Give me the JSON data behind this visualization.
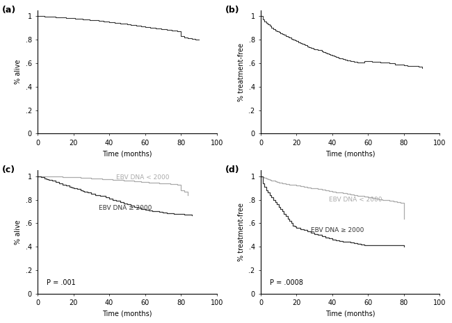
{
  "fig_width": 6.5,
  "fig_height": 4.65,
  "dpi": 100,
  "panel_labels": [
    "(a)",
    "(b)",
    "(c)",
    "(d)"
  ],
  "ylabels": [
    "% alive",
    "% treatment-free",
    "% alive",
    "% treatment-free"
  ],
  "xlabel": "Time (months)",
  "xlim": [
    0,
    100
  ],
  "ylim": [
    0,
    1.05
  ],
  "yticks": [
    0,
    0.2,
    0.4,
    0.6,
    0.8,
    1.0
  ],
  "ytick_labels": [
    "0",
    ".2",
    ".4",
    ".6",
    ".8",
    "1"
  ],
  "xticks": [
    0,
    20,
    40,
    60,
    80,
    100
  ],
  "color_low": "#aaaaaa",
  "color_high": "#333333",
  "color_single": "#333333",
  "p_value_c": "P = .001",
  "p_value_d": "P = .0008",
  "label_low": "EBV DNA < 2000",
  "label_high": "EBV DNA ≥ 2000",
  "os_all_times": [
    0,
    2,
    3,
    4,
    5,
    6,
    7,
    8,
    9,
    10,
    11,
    12,
    13,
    14,
    15,
    16,
    17,
    18,
    19,
    20,
    21,
    22,
    23,
    24,
    25,
    26,
    27,
    28,
    29,
    30,
    32,
    34,
    35,
    36,
    37,
    38,
    39,
    40,
    41,
    42,
    43,
    44,
    45,
    46,
    47,
    48,
    50,
    51,
    52,
    53,
    54,
    55,
    56,
    57,
    58,
    59,
    60,
    61,
    62,
    63,
    64,
    65,
    66,
    67,
    68,
    69,
    70,
    71,
    72,
    73,
    74,
    75,
    76,
    77,
    78,
    80,
    82,
    84,
    86,
    88,
    90
  ],
  "os_all_surv": [
    1.0,
    1.0,
    1.0,
    0.998,
    0.997,
    0.996,
    0.995,
    0.994,
    0.993,
    0.992,
    0.991,
    0.99,
    0.989,
    0.988,
    0.987,
    0.986,
    0.985,
    0.984,
    0.983,
    0.982,
    0.98,
    0.979,
    0.978,
    0.977,
    0.975,
    0.974,
    0.972,
    0.97,
    0.969,
    0.967,
    0.964,
    0.962,
    0.96,
    0.958,
    0.956,
    0.954,
    0.952,
    0.95,
    0.948,
    0.946,
    0.944,
    0.942,
    0.94,
    0.938,
    0.936,
    0.934,
    0.93,
    0.928,
    0.926,
    0.924,
    0.922,
    0.92,
    0.918,
    0.916,
    0.914,
    0.912,
    0.91,
    0.908,
    0.906,
    0.904,
    0.902,
    0.9,
    0.898,
    0.896,
    0.894,
    0.892,
    0.89,
    0.888,
    0.886,
    0.884,
    0.882,
    0.88,
    0.878,
    0.876,
    0.874,
    0.83,
    0.82,
    0.81,
    0.805,
    0.802,
    0.8
  ],
  "ttft_all_times": [
    0,
    1,
    2,
    3,
    4,
    5,
    6,
    7,
    8,
    9,
    10,
    11,
    12,
    13,
    14,
    15,
    16,
    17,
    18,
    19,
    20,
    21,
    22,
    23,
    24,
    25,
    26,
    27,
    28,
    29,
    30,
    32,
    34,
    35,
    36,
    37,
    38,
    39,
    40,
    41,
    42,
    43,
    44,
    45,
    46,
    47,
    48,
    50,
    52,
    54,
    56,
    58,
    60,
    62,
    65,
    67,
    70,
    72,
    75,
    77,
    80,
    82,
    85,
    88,
    90
  ],
  "ttft_all_surv": [
    1.0,
    0.97,
    0.955,
    0.94,
    0.928,
    0.916,
    0.904,
    0.892,
    0.88,
    0.872,
    0.864,
    0.856,
    0.848,
    0.84,
    0.832,
    0.824,
    0.816,
    0.808,
    0.8,
    0.793,
    0.786,
    0.779,
    0.772,
    0.765,
    0.758,
    0.751,
    0.744,
    0.737,
    0.73,
    0.723,
    0.716,
    0.709,
    0.702,
    0.696,
    0.69,
    0.684,
    0.678,
    0.673,
    0.667,
    0.661,
    0.655,
    0.649,
    0.643,
    0.638,
    0.633,
    0.628,
    0.623,
    0.618,
    0.613,
    0.608,
    0.603,
    0.62,
    0.617,
    0.614,
    0.611,
    0.608,
    0.605,
    0.602,
    0.59,
    0.587,
    0.581,
    0.578,
    0.575,
    0.57,
    0.56
  ],
  "os_low_times": [
    0,
    2,
    4,
    6,
    8,
    10,
    12,
    14,
    16,
    18,
    20,
    22,
    24,
    26,
    28,
    30,
    32,
    34,
    36,
    38,
    40,
    42,
    44,
    46,
    48,
    50,
    52,
    54,
    56,
    58,
    60,
    62,
    64,
    66,
    68,
    70,
    72,
    74,
    76,
    78,
    80,
    82,
    84
  ],
  "os_low_surv": [
    1.0,
    1.0,
    1.0,
    1.0,
    0.998,
    0.997,
    0.996,
    0.995,
    0.994,
    0.993,
    0.991,
    0.99,
    0.988,
    0.987,
    0.985,
    0.983,
    0.981,
    0.979,
    0.977,
    0.975,
    0.973,
    0.971,
    0.969,
    0.967,
    0.964,
    0.962,
    0.96,
    0.957,
    0.955,
    0.953,
    0.95,
    0.948,
    0.946,
    0.944,
    0.942,
    0.94,
    0.938,
    0.935,
    0.933,
    0.93,
    0.88,
    0.87,
    0.84
  ],
  "os_high_times": [
    0,
    2,
    4,
    5,
    6,
    8,
    10,
    12,
    14,
    15,
    16,
    18,
    19,
    20,
    22,
    24,
    25,
    26,
    28,
    30,
    32,
    35,
    38,
    40,
    42,
    44,
    46,
    48,
    50,
    52,
    54,
    56,
    58,
    60,
    62,
    64,
    66,
    68,
    70,
    72,
    74,
    76,
    78,
    80,
    82,
    84,
    86
  ],
  "os_high_surv": [
    1.0,
    0.99,
    0.98,
    0.975,
    0.97,
    0.96,
    0.95,
    0.94,
    0.93,
    0.925,
    0.92,
    0.91,
    0.905,
    0.9,
    0.89,
    0.88,
    0.875,
    0.87,
    0.86,
    0.85,
    0.84,
    0.83,
    0.82,
    0.81,
    0.8,
    0.79,
    0.78,
    0.77,
    0.76,
    0.75,
    0.74,
    0.73,
    0.72,
    0.715,
    0.71,
    0.705,
    0.7,
    0.695,
    0.69,
    0.685,
    0.682,
    0.68,
    0.678,
    0.676,
    0.674,
    0.672,
    0.67
  ],
  "ttft_low_times": [
    0,
    1,
    2,
    3,
    4,
    5,
    6,
    7,
    8,
    9,
    10,
    12,
    14,
    16,
    18,
    20,
    22,
    24,
    26,
    28,
    30,
    32,
    34,
    36,
    38,
    40,
    42,
    44,
    46,
    48,
    50,
    52,
    54,
    56,
    58,
    60,
    62,
    64,
    66,
    68,
    70,
    72,
    74,
    76,
    78,
    80
  ],
  "ttft_low_surv": [
    1.0,
    0.99,
    0.985,
    0.98,
    0.975,
    0.97,
    0.965,
    0.96,
    0.955,
    0.95,
    0.945,
    0.94,
    0.935,
    0.93,
    0.925,
    0.92,
    0.915,
    0.91,
    0.905,
    0.9,
    0.895,
    0.89,
    0.885,
    0.88,
    0.875,
    0.87,
    0.865,
    0.86,
    0.855,
    0.85,
    0.845,
    0.84,
    0.835,
    0.83,
    0.825,
    0.82,
    0.815,
    0.81,
    0.805,
    0.8,
    0.795,
    0.79,
    0.785,
    0.78,
    0.775,
    0.64
  ],
  "ttft_high_times": [
    0,
    1,
    2,
    3,
    4,
    5,
    6,
    7,
    8,
    9,
    10,
    11,
    12,
    13,
    14,
    15,
    16,
    17,
    18,
    19,
    20,
    22,
    24,
    26,
    28,
    30,
    32,
    34,
    36,
    38,
    40,
    42,
    44,
    46,
    48,
    50,
    52,
    54,
    56,
    58,
    60,
    62,
    64,
    66,
    68,
    70,
    72,
    74,
    76,
    78,
    80
  ],
  "ttft_high_surv": [
    1.0,
    0.94,
    0.91,
    0.88,
    0.86,
    0.84,
    0.82,
    0.8,
    0.78,
    0.76,
    0.74,
    0.72,
    0.7,
    0.68,
    0.66,
    0.64,
    0.62,
    0.6,
    0.58,
    0.57,
    0.56,
    0.55,
    0.54,
    0.53,
    0.52,
    0.51,
    0.5,
    0.49,
    0.48,
    0.47,
    0.46,
    0.455,
    0.45,
    0.445,
    0.44,
    0.435,
    0.43,
    0.425,
    0.42,
    0.415,
    0.415,
    0.415,
    0.415,
    0.415,
    0.415,
    0.415,
    0.415,
    0.415,
    0.415,
    0.415,
    0.4
  ]
}
